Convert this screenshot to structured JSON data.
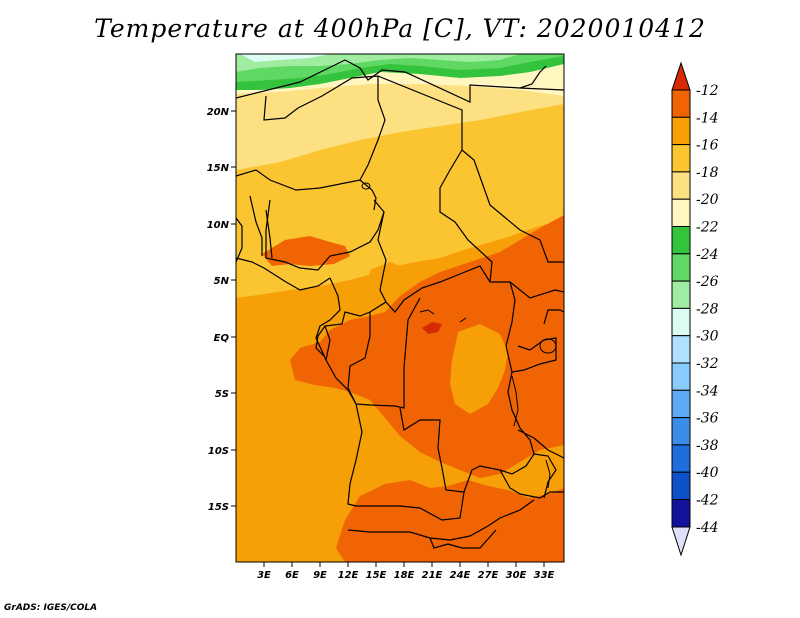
{
  "title": "Temperature at 400hPa [C], VT: 2020010412",
  "footer": "GrADS: IGES/COLA",
  "map": {
    "lon_labels": [
      "3E",
      "6E",
      "9E",
      "12E",
      "15E",
      "18E",
      "21E",
      "24E",
      "27E",
      "30E",
      "33E"
    ],
    "lat_labels": [
      "20N",
      "15N",
      "10N",
      "5N",
      "EQ",
      "5S",
      "10S",
      "15S"
    ],
    "lon_range": [
      0,
      35
    ],
    "lat_range": [
      -20,
      25
    ]
  },
  "colorbar": {
    "labels": [
      "-12",
      "-14",
      "-16",
      "-18",
      "-20",
      "-22",
      "-24",
      "-26",
      "-28",
      "-30",
      "-32",
      "-34",
      "-36",
      "-38",
      "-40",
      "-42",
      "-44"
    ],
    "colors": [
      "#d62a03",
      "#f06404",
      "#f79f06",
      "#fbc431",
      "#fde082",
      "#fff6c0",
      "#34c33c",
      "#60d864",
      "#a0eca0",
      "#dcfcf4",
      "#b0e0ff",
      "#88ccff",
      "#60aaf5",
      "#3c8cea",
      "#1e6ede",
      "#0e50c8",
      "#14129a",
      "#e0e0fa"
    ]
  },
  "colors": {
    "orange_dark": "#f06404",
    "orange": "#f79f06",
    "orange_light": "#fbc431",
    "yellow": "#fde082",
    "cream": "#fff6c0",
    "green": "#34c33c",
    "green_light": "#60d864",
    "green_pale": "#a0eca0",
    "cyan_pale": "#dcfcf4",
    "red_spot": "#d62a03"
  }
}
